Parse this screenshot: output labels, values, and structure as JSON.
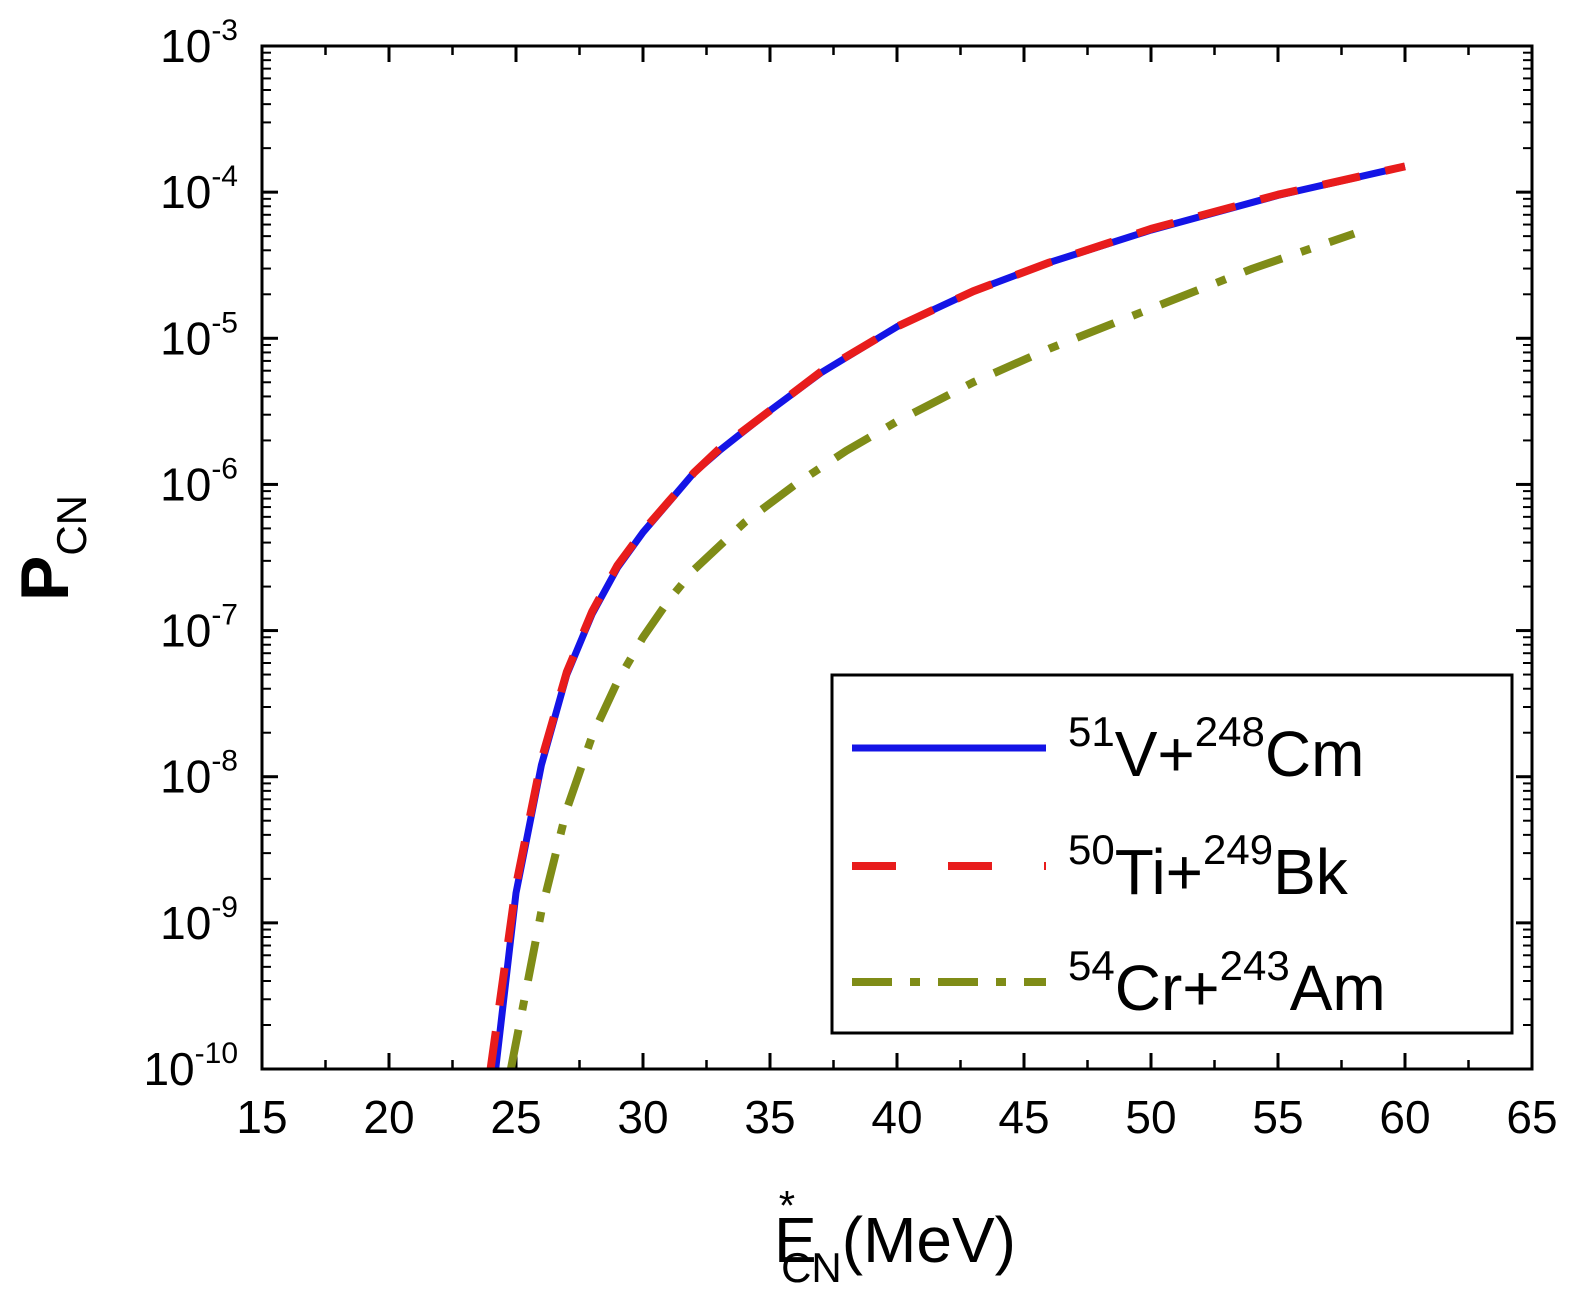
{
  "chart_data": {
    "type": "line",
    "xlabel": {
      "main": "E",
      "sup": "*",
      "sub": "CN",
      "rest": "(MeV)"
    },
    "ylabel": {
      "main": "P",
      "sub": "CN"
    },
    "xlim": [
      15,
      65
    ],
    "ylim": [
      1e-10,
      0.001
    ],
    "yscale": "log",
    "x_ticks": [
      15,
      20,
      25,
      30,
      35,
      40,
      45,
      50,
      55,
      60,
      65
    ],
    "y_ticks": [
      {
        "value": 1e-10,
        "base": "10",
        "exp": "-10"
      },
      {
        "value": 1e-09,
        "base": "10",
        "exp": "-9"
      },
      {
        "value": 1e-08,
        "base": "10",
        "exp": "-8"
      },
      {
        "value": 1e-07,
        "base": "10",
        "exp": "-7"
      },
      {
        "value": 1e-06,
        "base": "10",
        "exp": "-6"
      },
      {
        "value": 1e-05,
        "base": "10",
        "exp": "-5"
      },
      {
        "value": 0.0001,
        "base": "10",
        "exp": "-4"
      },
      {
        "value": 0.001,
        "base": "10",
        "exp": "-3"
      }
    ],
    "grid": false,
    "legend_position": "bottom-right",
    "series": [
      {
        "name": {
          "a_mass": "51",
          "a_sym": "V",
          "plus": "+",
          "b_mass": "248",
          "b_sym": "Cm"
        },
        "color": "#1414e6",
        "style": "solid",
        "x": [
          24.2,
          25,
          26,
          27,
          28,
          29,
          30,
          31,
          32,
          33,
          35,
          37,
          40,
          43,
          46,
          50,
          55,
          60
        ],
        "y": [
          1e-10,
          1.6e-09,
          1.2e-08,
          5e-08,
          1.3e-07,
          2.7e-07,
          4.7e-07,
          7.5e-07,
          1.2e-06,
          1.7e-06,
          3.2e-06,
          5.8e-06,
          1.2e-05,
          2.1e-05,
          3.3e-05,
          5.5e-05,
          9.5e-05,
          0.00015
        ]
      },
      {
        "name": {
          "a_mass": "50",
          "a_sym": "Ti",
          "plus": "+",
          "b_mass": "249",
          "b_sym": "Bk"
        },
        "color": "#e81c1c",
        "style": "dashed",
        "x": [
          24.0,
          25,
          26,
          27,
          28,
          29,
          30,
          31,
          32,
          33,
          35,
          37,
          40,
          43,
          46,
          50,
          55,
          60
        ],
        "y": [
          1e-10,
          1.8e-09,
          1.3e-08,
          5.2e-08,
          1.35e-07,
          2.8e-07,
          4.8e-07,
          7.6e-07,
          1.2e-06,
          1.75e-06,
          3.2e-06,
          5.9e-06,
          1.2e-05,
          2.1e-05,
          3.3e-05,
          5.6e-05,
          9.6e-05,
          0.00015
        ]
      },
      {
        "name": {
          "a_mass": "54",
          "a_sym": "Cr",
          "plus": "+",
          "b_mass": "243",
          "b_sym": "Am"
        },
        "color": "#7f8c17",
        "style": "dashdot",
        "x": [
          24.8,
          26,
          27,
          28,
          29,
          30,
          31,
          32,
          34,
          36,
          38,
          40,
          43,
          46,
          50,
          54,
          58
        ],
        "y": [
          1e-10,
          1.2e-09,
          6e-09,
          1.9e-08,
          4.5e-08,
          9e-08,
          1.6e-07,
          2.6e-07,
          5.5e-07,
          1e-06,
          1.7e-06,
          2.7e-06,
          5e-06,
          8.5e-06,
          1.6e-05,
          3e-05,
          5.2e-05
        ]
      }
    ]
  }
}
